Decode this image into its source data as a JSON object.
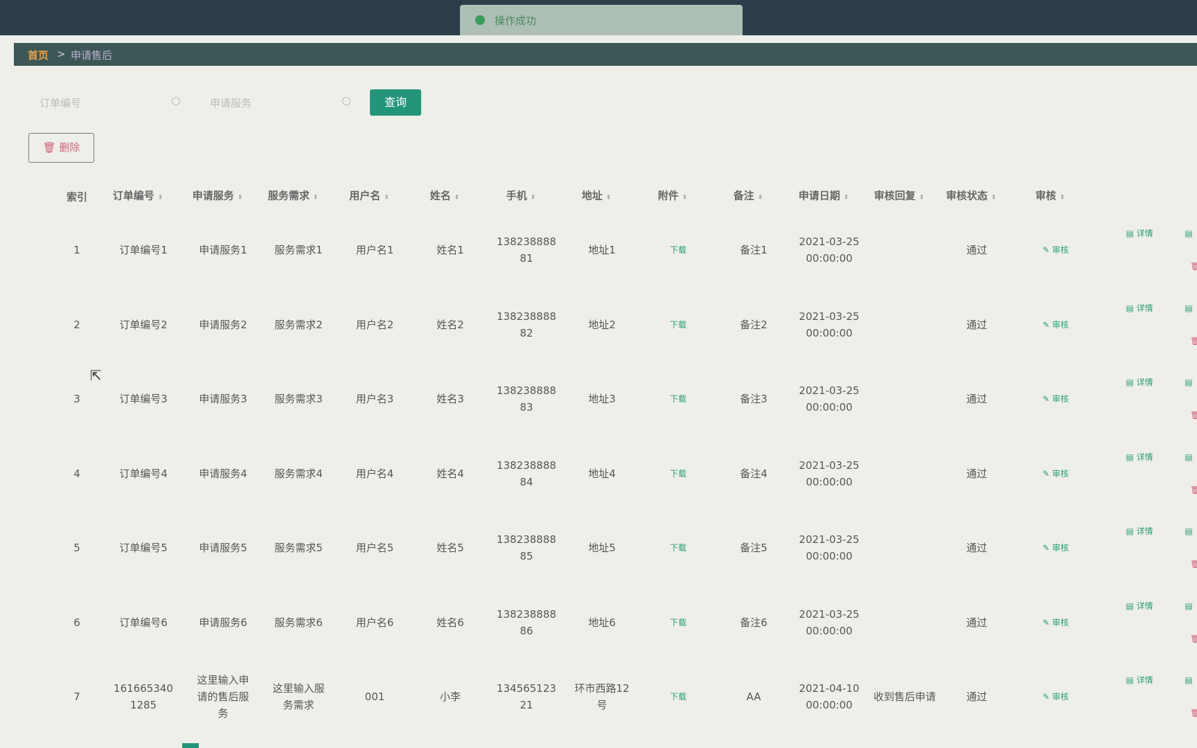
{
  "toast": {
    "message": "操作成功"
  },
  "breadcrumb": {
    "home": "首页",
    "separator": ">",
    "current": "申请售后"
  },
  "search": {
    "order_placeholder": "订单编号",
    "service_placeholder": "申请服务",
    "query_button": "查询"
  },
  "toolbar": {
    "delete_button": "删除"
  },
  "table": {
    "headers": [
      "索引",
      "订单编号",
      "申请服务",
      "服务需求",
      "用户名",
      "姓名",
      "手机",
      "地址",
      "附件",
      "备注",
      "申请日期",
      "审核回复",
      "审核状态",
      "审核"
    ],
    "rows": [
      [
        "1",
        "订单编号1",
        "申请服务1",
        "服务需求1",
        "用户名1",
        "姓名1",
        "13823888881",
        "地址1",
        "下载",
        "备注1",
        "2021-03-25 00:00:00",
        "",
        "通过",
        "审核"
      ],
      [
        "2",
        "订单编号2",
        "申请服务2",
        "服务需求2",
        "用户名2",
        "姓名2",
        "13823888882",
        "地址2",
        "下载",
        "备注2",
        "2021-03-25 00:00:00",
        "",
        "通过",
        "审核"
      ],
      [
        "3",
        "订单编号3",
        "申请服务3",
        "服务需求3",
        "用户名3",
        "姓名3",
        "13823888883",
        "地址3",
        "下载",
        "备注3",
        "2021-03-25 00:00:00",
        "",
        "通过",
        "审核"
      ],
      [
        "4",
        "订单编号4",
        "申请服务4",
        "服务需求4",
        "用户名4",
        "姓名4",
        "13823888884",
        "地址4",
        "下载",
        "备注4",
        "2021-03-25 00:00:00",
        "",
        "通过",
        "审核"
      ],
      [
        "5",
        "订单编号5",
        "申请服务5",
        "服务需求5",
        "用户名5",
        "姓名5",
        "13823888885",
        "地址5",
        "下载",
        "备注5",
        "2021-03-25 00:00:00",
        "",
        "通过",
        "审核"
      ],
      [
        "6",
        "订单编号6",
        "申请服务6",
        "服务需求6",
        "用户名6",
        "姓名6",
        "13823888886",
        "地址6",
        "下载",
        "备注6",
        "2021-03-25 00:00:00",
        "",
        "通过",
        "审核"
      ],
      [
        "7",
        "1616653401285",
        "这里输入申请的售后服务",
        "这里输入服务需求",
        "001",
        "小李",
        "13456512321",
        "环市西路12号",
        "下载",
        "AA",
        "2021-04-10 00:00:00",
        "收到售后申请",
        "通过",
        "审核"
      ]
    ],
    "detail_action": "详情"
  }
}
